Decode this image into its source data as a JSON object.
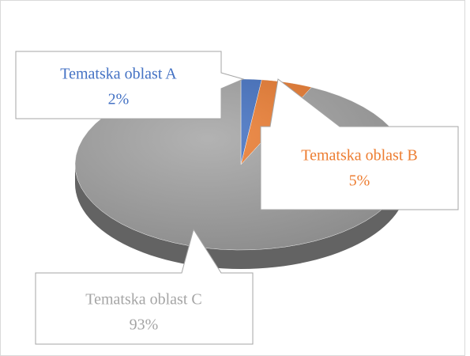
{
  "chart_data": {
    "type": "pie",
    "categories": [
      "Tematska oblast A",
      "Tematska oblast B",
      "Tematska oblast C"
    ],
    "values": [
      2,
      5,
      93
    ],
    "value_labels": [
      "2%",
      "5%",
      "93%"
    ],
    "colors": [
      "#4472c4",
      "#ed7d31",
      "#a5a5a5"
    ]
  }
}
